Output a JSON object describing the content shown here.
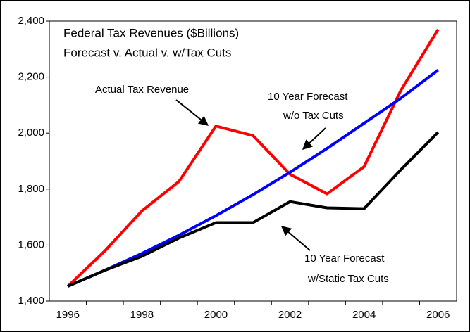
{
  "chart_data": {
    "type": "line",
    "title": [
      "Federal Tax Revenues ($Billions)",
      "Forecast v. Actual v. w/Tax Cuts"
    ],
    "categories": [
      "1996",
      null,
      "1998",
      null,
      "2000",
      null,
      "2002",
      null,
      "2004",
      null,
      "2006"
    ],
    "series": [
      {
        "color": "#ff0000",
        "values": [
          1453,
          1579,
          1722,
          1827,
          2025,
          1991,
          1853,
          1783,
          1880,
          2154,
          2370
        ]
      },
      {
        "color": "#0000ff",
        "values": [
          1453,
          1510,
          1570,
          1635,
          1705,
          1780,
          1860,
          1945,
          2035,
          2125,
          2225
        ]
      },
      {
        "color": "#000000",
        "values": [
          1453,
          1510,
          1560,
          1625,
          1680,
          1680,
          1755,
          1733,
          1730,
          1870,
          2003
        ]
      }
    ],
    "annotations": [
      {
        "lines": [
          "Actual Tax Revenue"
        ]
      },
      {
        "lines": [
          "10 Year Forecast",
          "w/o Tax Cuts"
        ]
      },
      {
        "lines": [
          "10 Year Forecast",
          "w/Static Tax Cuts"
        ]
      }
    ],
    "ylim": [
      1400,
      2400
    ],
    "yticks": [
      {
        "value": 1400,
        "label": "1,400"
      },
      {
        "value": 1600,
        "label": "1,600"
      },
      {
        "value": 1800,
        "label": "1,800"
      },
      {
        "value": 2000,
        "label": "2,000"
      },
      {
        "value": 2200,
        "label": "2,200"
      },
      {
        "value": 2400,
        "label": "2,400"
      }
    ],
    "grid": false
  }
}
